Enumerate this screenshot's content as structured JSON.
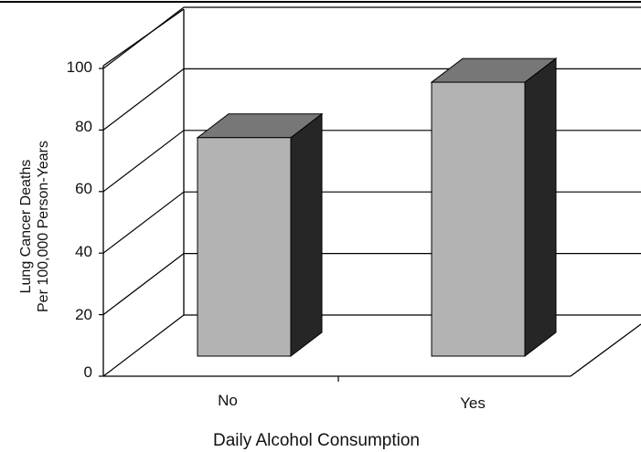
{
  "chart_data": {
    "type": "bar",
    "style": "3d",
    "categories": [
      "No",
      "Yes"
    ],
    "values": [
      71,
      89
    ],
    "xlabel": "Daily Alcohol Consumption",
    "ylabel_lines": [
      "Lung Cancer Deaths",
      "Per 100,000 Person-Years"
    ],
    "yticks": [
      "0",
      "20",
      "40",
      "60",
      "80",
      "100"
    ],
    "ylim": [
      0,
      100
    ],
    "grid": true,
    "colors": {
      "bar_front": "#b3b3b3",
      "bar_top": "#777777",
      "bar_side": "#262626",
      "gridline": "#000000"
    }
  }
}
